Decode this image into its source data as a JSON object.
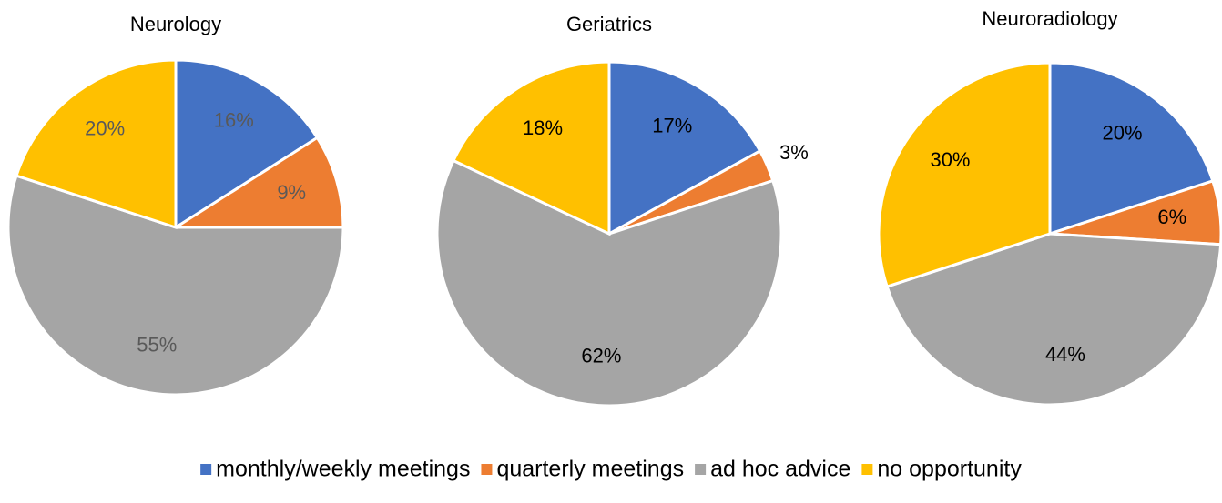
{
  "chart_data": [
    {
      "type": "pie",
      "title": "Neurology",
      "values": [
        16,
        9,
        55,
        20
      ],
      "value_labels": [
        "16%",
        "9%",
        "55%",
        "20%"
      ],
      "label_color": "#595959"
    },
    {
      "type": "pie",
      "title": "Geriatrics",
      "values": [
        17,
        3,
        62,
        18
      ],
      "value_labels": [
        "17%",
        "3%",
        "62%",
        "18%"
      ],
      "label_color": "#000000"
    },
    {
      "type": "pie",
      "title": "Neuroradiology",
      "values": [
        20,
        6,
        44,
        30
      ],
      "value_labels": [
        "20%",
        "6%",
        "44%",
        "30%"
      ],
      "label_color": "#000000"
    }
  ],
  "legend": {
    "categories": [
      "monthly/weekly meetings",
      "quarterly meetings",
      "ad hoc advice",
      "no opportunity"
    ],
    "colors": [
      "#4472c4",
      "#ed7d31",
      "#a5a5a5",
      "#ffc000"
    ]
  }
}
